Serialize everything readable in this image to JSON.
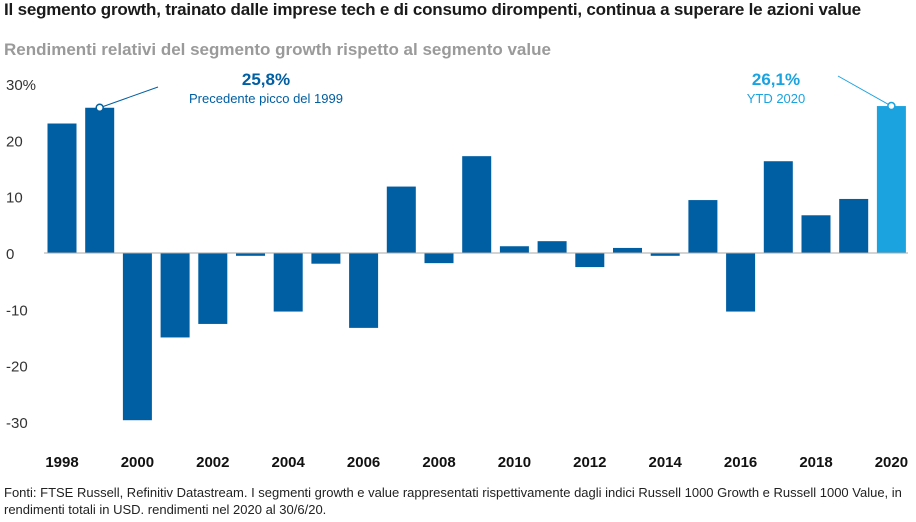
{
  "title": "Il segmento growth, trainato dalle imprese tech e di consumo dirompenti, continua a superare le azioni value",
  "subtitle": "Rendimenti relativi del segmento growth rispetto al segmento value",
  "source": "Fonti: FTSE Russell, Refinitiv Datastream. I segmenti growth e value rappresentati rispettivamente dagli indici Russell 1000 Growth e Russell 1000 Value, in rendimenti totali in USD. rendimenti nel 2020 al 30/6/20.",
  "chart_data": {
    "type": "bar",
    "categories": [
      "1998",
      "1999",
      "2000",
      "2001",
      "2002",
      "2003",
      "2004",
      "2005",
      "2006",
      "2007",
      "2008",
      "2009",
      "2010",
      "2011",
      "2012",
      "2013",
      "2014",
      "2015",
      "2016",
      "2017",
      "2018",
      "2019",
      "2020"
    ],
    "values": [
      23.0,
      25.8,
      -29.7,
      -15.0,
      -12.6,
      -0.5,
      -10.4,
      -1.9,
      -13.3,
      11.8,
      -1.8,
      17.2,
      1.2,
      2.1,
      -2.5,
      0.9,
      -0.5,
      9.4,
      -10.4,
      16.3,
      6.7,
      9.6,
      26.1
    ],
    "x_tick_labels": [
      "1998",
      "2000",
      "2002",
      "2004",
      "2006",
      "2008",
      "2010",
      "2012",
      "2014",
      "2016",
      "2018",
      "2020"
    ],
    "y_ticks": [
      {
        "value": 30,
        "label": "30%"
      },
      {
        "value": 20,
        "label": "20"
      },
      {
        "value": 10,
        "label": "10"
      },
      {
        "value": 0,
        "label": "0"
      },
      {
        "value": -10,
        "label": "-10"
      },
      {
        "value": -20,
        "label": "-20"
      },
      {
        "value": -30,
        "label": "-30"
      }
    ],
    "ylim": [
      -31,
      31
    ],
    "grid": false,
    "colors": {
      "default": "#005ea2",
      "highlight": "#1ba3e0"
    },
    "highlight_category": "2020",
    "annotations": [
      {
        "category": "1999",
        "value_label": "25,8%",
        "text": "Precedente picco del 1999",
        "color": "#005ea2"
      },
      {
        "category": "2020",
        "value_label": "26,1%",
        "text": "YTD 2020",
        "color": "#1ba3e0"
      }
    ]
  }
}
